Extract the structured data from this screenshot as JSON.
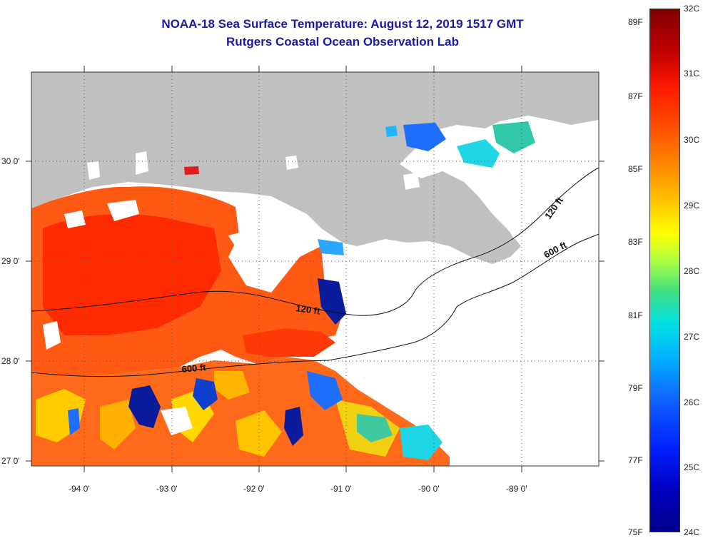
{
  "title": "NOAA-18 Sea Surface Temperature:  August 12, 2019 1517 GMT",
  "subtitle": "Rutgers Coastal Ocean Observation Lab",
  "map": {
    "lat_labels": [
      "30 0'",
      "29 0'",
      "28 0'",
      "27 0'"
    ],
    "lon_labels": [
      "-94 0'",
      "-93 0'",
      "-92 0'",
      "-91 0'",
      "-90 0'",
      "-89 0'"
    ],
    "contour_labels": [
      "120 ft",
      "600 ft",
      "120 ft",
      "600 ft"
    ],
    "colors": {
      "land": "#c0c0c0",
      "cloud": "#ffffff",
      "warm": "#ff5a14",
      "hot": "#ff2a00",
      "mid": "#ffcc00",
      "cool": "#1e6fff",
      "cold": "#0a1c9a",
      "cyan": "#1fd6e6"
    }
  },
  "colorbar": {
    "celsius": [
      "32C",
      "31C",
      "30C",
      "29C",
      "28C",
      "27C",
      "26C",
      "25C",
      "24C"
    ],
    "fahrenheit": [
      "89F",
      "87F",
      "85F",
      "83F",
      "81F",
      "79F",
      "77F",
      "75F"
    ]
  }
}
